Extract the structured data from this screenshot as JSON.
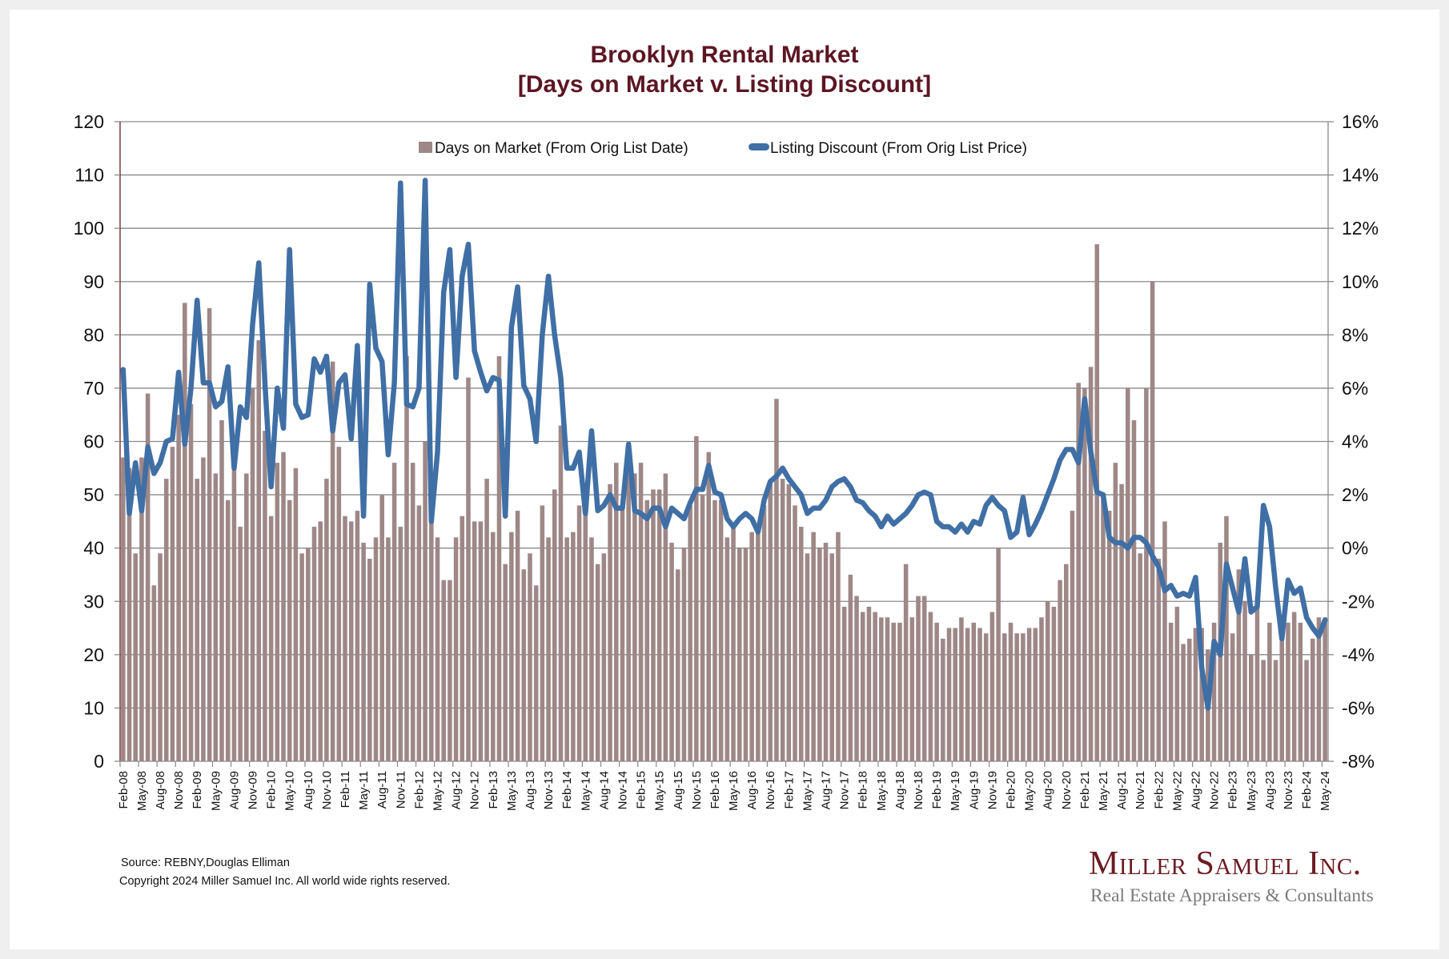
{
  "header": {
    "title_line1": "Brooklyn Rental Market",
    "title_line2": "[Days on Market v. Listing Discount]"
  },
  "footer": {
    "source": "Source: REBNY,Douglas Elliman",
    "copyright": "Copyright 2024 Miller Samuel Inc.  All world wide rights reserved."
  },
  "logo": {
    "name": "Miller Samuel Inc.",
    "tagline": "Real Estate Appraisers & Consultants"
  },
  "colors": {
    "bars": "#9e8787",
    "line": "#3f6fa5",
    "title": "#5c1623",
    "grid": "#8a8a8a",
    "left_axis": "#6b1b22"
  },
  "chart_data": {
    "type": "bar",
    "title": "Brooklyn Rental Market [Days on Market v. Listing Discount]",
    "xlabel": "",
    "ylabel": "",
    "y2label": "",
    "ylim": [
      0,
      120
    ],
    "yticks": [
      0,
      10,
      20,
      30,
      40,
      50,
      60,
      70,
      80,
      90,
      100,
      110,
      120
    ],
    "y2lim": [
      -8,
      16
    ],
    "y2ticks": [
      "-8%",
      "-6%",
      "-4%",
      "-2%",
      "0%",
      "2%",
      "4%",
      "6%",
      "8%",
      "10%",
      "12%",
      "14%",
      "16%"
    ],
    "y2tick_values": [
      -8,
      -6,
      -4,
      -2,
      0,
      2,
      4,
      6,
      8,
      10,
      12,
      14,
      16
    ],
    "grid": true,
    "legend_position": "top-center",
    "x_start": "Feb-08",
    "x_end": "May-24",
    "x_frequency": "monthly",
    "xtick_labels": [
      "Feb-08",
      "May-08",
      "Aug-08",
      "Nov-08",
      "Feb-09",
      "May-09",
      "Aug-09",
      "Nov-09",
      "Feb-10",
      "May-10",
      "Aug-10",
      "Nov-10",
      "Feb-11",
      "May-11",
      "Aug-11",
      "Nov-11",
      "Feb-12",
      "May-12",
      "Aug-12",
      "Nov-12",
      "Feb-13",
      "May-13",
      "Aug-13",
      "Nov-13",
      "Feb-14",
      "May-14",
      "Aug-14",
      "Nov-14",
      "Feb-15",
      "May-15",
      "Aug-15",
      "Nov-15",
      "Feb-16",
      "May-16",
      "Aug-16",
      "Nov-16",
      "Feb-17",
      "May-17",
      "Aug-17",
      "Nov-17",
      "Feb-18",
      "May-18",
      "Aug-18",
      "Nov-18",
      "Feb-19",
      "May-19",
      "Aug-19",
      "Nov-19",
      "Feb-20",
      "May-20",
      "Aug-20",
      "Nov-20",
      "Feb-21",
      "May-21",
      "Aug-21",
      "Nov-21",
      "Feb-22",
      "May-22",
      "Aug-22",
      "Nov-22",
      "Feb-23",
      "May-23",
      "Aug-23",
      "Nov-23",
      "Feb-24",
      "May-24"
    ],
    "series": [
      {
        "name": "Days on Market (From Orig List Date)",
        "type": "bar",
        "axis": "left",
        "values": [
          57,
          55,
          39,
          57,
          69,
          33,
          39,
          53,
          59,
          65,
          86,
          67,
          53,
          57,
          85,
          54,
          64,
          49,
          55,
          44,
          54,
          70,
          79,
          62,
          46,
          56,
          58,
          49,
          55,
          39,
          40,
          44,
          45,
          53,
          75,
          59,
          46,
          45,
          47,
          41,
          38,
          42,
          50,
          42,
          56,
          44,
          76,
          56,
          48,
          60,
          48,
          42,
          34,
          34,
          42,
          46,
          72,
          45,
          45,
          53,
          43,
          76,
          37,
          43,
          47,
          36,
          39,
          33,
          48,
          42,
          51,
          63,
          42,
          43,
          48,
          47,
          42,
          37,
          39,
          52,
          56,
          48,
          58,
          54,
          56,
          49,
          51,
          51,
          54,
          41,
          36,
          40,
          48,
          61,
          50,
          58,
          49,
          49,
          42,
          44,
          40,
          40,
          43,
          43,
          48,
          52,
          68,
          53,
          52,
          48,
          44,
          39,
          43,
          40,
          41,
          39,
          43,
          29,
          35,
          31,
          28,
          29,
          28,
          27,
          27,
          26,
          26,
          37,
          27,
          31,
          31,
          28,
          26,
          23,
          25,
          25,
          27,
          25,
          26,
          25,
          24,
          28,
          40,
          24,
          26,
          24,
          24,
          25,
          25,
          27,
          30,
          29,
          34,
          37,
          47,
          71,
          70,
          74,
          97,
          50,
          47,
          56,
          52,
          70,
          64,
          39,
          70,
          90,
          38,
          45,
          26,
          29,
          22,
          23,
          25,
          25,
          21,
          26,
          41,
          46,
          24,
          36,
          30,
          20,
          31,
          19,
          26,
          19,
          24,
          26,
          28,
          26,
          19,
          23,
          27,
          27
        ]
      },
      {
        "name": "Listing Discount (From Orig List Price)",
        "type": "line",
        "axis": "right",
        "unit": "%",
        "values": [
          6.7,
          1.3,
          3.2,
          1.4,
          3.8,
          2.8,
          3.2,
          4.0,
          4.1,
          6.6,
          3.9,
          6.0,
          9.3,
          6.2,
          6.2,
          5.3,
          5.5,
          6.8,
          3.0,
          5.3,
          4.9,
          8.4,
          10.7,
          6.2,
          2.3,
          6.0,
          4.5,
          11.2,
          5.4,
          4.9,
          5.0,
          7.1,
          6.6,
          7.2,
          4.4,
          6.2,
          6.5,
          4.1,
          7.6,
          1.2,
          9.9,
          7.5,
          7.0,
          3.5,
          6.2,
          13.7,
          5.4,
          5.3,
          6.0,
          13.8,
          1.0,
          3.6,
          9.6,
          11.2,
          6.4,
          10.2,
          11.4,
          7.4,
          6.6,
          5.9,
          6.4,
          6.3,
          1.2,
          8.3,
          9.8,
          6.1,
          5.6,
          4.0,
          8.0,
          10.2,
          8.0,
          6.4,
          3.0,
          3.0,
          3.6,
          1.3,
          4.4,
          1.4,
          1.6,
          2.0,
          1.5,
          1.5,
          3.9,
          1.4,
          1.3,
          1.1,
          1.5,
          1.5,
          0.8,
          1.5,
          1.3,
          1.1,
          1.7,
          2.2,
          2.2,
          3.1,
          2.1,
          2.0,
          1.1,
          0.8,
          1.1,
          1.3,
          1.1,
          0.6,
          1.8,
          2.5,
          2.7,
          3.0,
          2.6,
          2.3,
          2.0,
          1.3,
          1.5,
          1.5,
          1.8,
          2.3,
          2.5,
          2.6,
          2.3,
          1.8,
          1.7,
          1.4,
          1.2,
          0.8,
          1.2,
          0.9,
          1.1,
          1.3,
          1.6,
          2.0,
          2.1,
          2.0,
          1.0,
          0.8,
          0.8,
          0.6,
          0.9,
          0.6,
          1.0,
          0.9,
          1.6,
          1.9,
          1.6,
          1.4,
          0.4,
          0.6,
          1.9,
          0.5,
          0.9,
          1.4,
          2.0,
          2.6,
          3.3,
          3.7,
          3.7,
          3.2,
          5.6,
          3.6,
          2.1,
          2.0,
          0.4,
          0.2,
          0.2,
          0.0,
          0.4,
          0.4,
          0.2,
          -0.3,
          -0.7,
          -1.6,
          -1.4,
          -1.8,
          -1.7,
          -1.8,
          -1.1,
          -4.5,
          -6.0,
          -3.5,
          -4.0,
          -0.6,
          -1.5,
          -2.4,
          -0.4,
          -2.4,
          -2.2,
          1.6,
          0.8,
          -1.5,
          -3.4,
          -1.2,
          -1.7,
          -1.5,
          -2.6,
          -3.0,
          -3.3,
          -2.7
        ]
      }
    ]
  }
}
